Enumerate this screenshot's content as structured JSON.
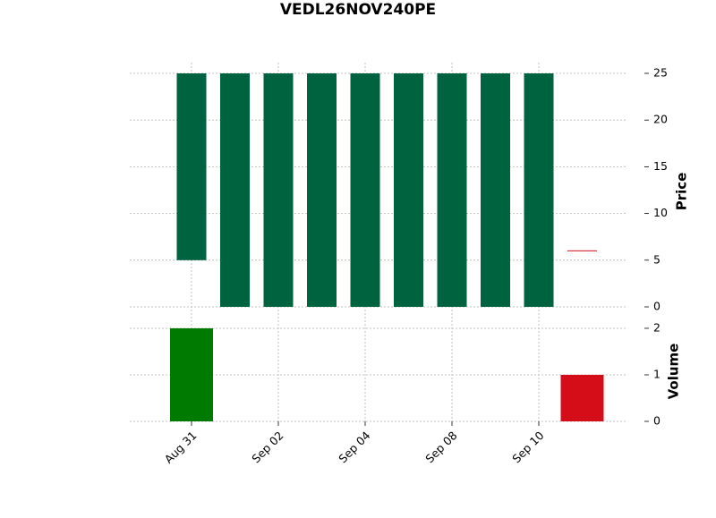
{
  "chart_data": {
    "type": "candlestick",
    "title": "VEDL26NOV240PE",
    "categories": [
      "Aug 31",
      null,
      "Sep 02",
      null,
      "Sep 04",
      null,
      "Sep 08",
      null,
      "Sep 10",
      null
    ],
    "open": [
      5,
      0,
      0,
      0,
      0,
      0,
      0,
      0,
      0,
      6
    ],
    "high": [
      25,
      25,
      25,
      25,
      25,
      25,
      25,
      25,
      25,
      6
    ],
    "low": [
      5,
      0,
      0,
      0,
      0,
      0,
      0,
      0,
      0,
      6
    ],
    "close": [
      25,
      25,
      25,
      25,
      25,
      25,
      25,
      25,
      25,
      6
    ],
    "volume": [
      2,
      0,
      0,
      0,
      0,
      0,
      0,
      0,
      0,
      1
    ],
    "up_color": "#006340",
    "down_color": "#d50d18",
    "volume_up_color": "#007a00",
    "volume_down_color": "#d50d18",
    "ylabel": "Price",
    "ylim": [
      -1.15,
      26.15
    ],
    "yticks": [
      0,
      5,
      10,
      15,
      20,
      25
    ],
    "volume_label": "Volume",
    "volume_ylim": [
      0,
      2.23
    ],
    "volume_yticks": [
      0,
      1,
      2
    ],
    "grid": true
  }
}
